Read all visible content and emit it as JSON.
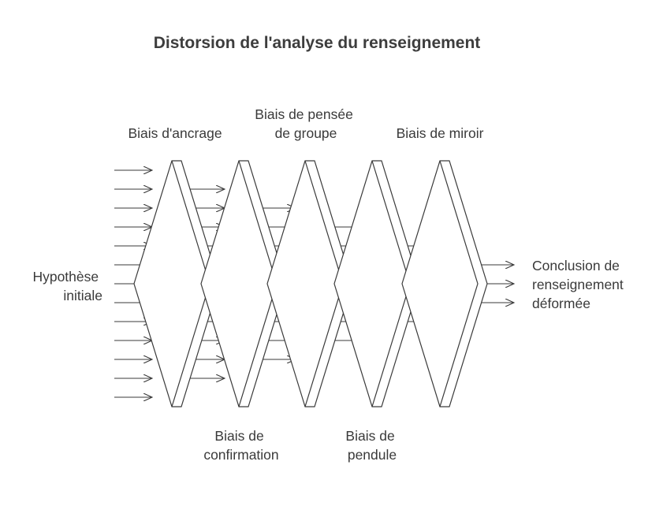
{
  "diagram": {
    "title": "Distorsion de l'analyse du renseignement",
    "input_label": [
      "Hypothèse",
      "initiale"
    ],
    "output_label": [
      "Conclusion de",
      "renseignement",
      "déformée"
    ],
    "stages": [
      {
        "id": "ancrage",
        "lines": [
          "Biais d'ancrage"
        ]
      },
      {
        "id": "confirmation",
        "lines": [
          "Biais de",
          "confirmation"
        ]
      },
      {
        "id": "pensee-groupe",
        "lines": [
          "Biais de pensée",
          "de groupe"
        ]
      },
      {
        "id": "pendule",
        "lines": [
          "Biais de",
          "pendule"
        ]
      },
      {
        "id": "miroir",
        "lines": [
          "Biais de miroir"
        ]
      }
    ],
    "colors": {
      "stroke": "#3a3a3a",
      "text": "#3a3a3a",
      "background": "#ffffff"
    }
  }
}
